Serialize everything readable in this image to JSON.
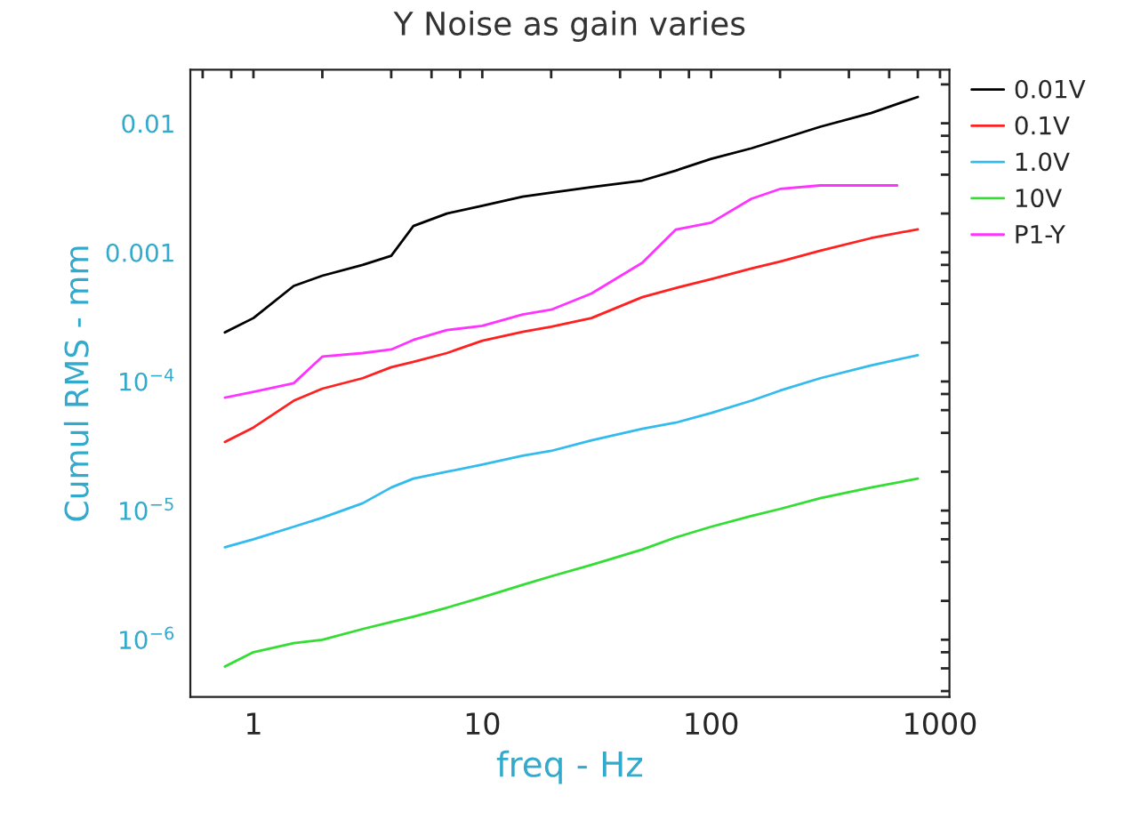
{
  "chart_data": {
    "type": "line",
    "title": "Y Noise as gain varies",
    "xlabel": "freq - Hz",
    "ylabel": "Cumul RMS - mm",
    "log": "xy",
    "grid": false,
    "legend": "right",
    "line_style": "solid",
    "marker": "none",
    "x": [
      0.75,
      1,
      1.5,
      2,
      3,
      4,
      5,
      7,
      10,
      15,
      20,
      30,
      50,
      70,
      100,
      150,
      200,
      300,
      500,
      800
    ],
    "series": [
      {
        "name": "0.01V",
        "color": "#000000",
        "values": [
          0.00024,
          0.00031,
          0.00055,
          0.00066,
          0.0008,
          0.00094,
          0.0016,
          0.002,
          0.0023,
          0.0027,
          0.0029,
          0.0032,
          0.0036,
          0.0043,
          0.0053,
          0.0064,
          0.0075,
          0.0094,
          0.012,
          0.016
        ]
      },
      {
        "name": "0.1V",
        "color": "#ff2020",
        "values": [
          3.4e-05,
          4.4e-05,
          7.1e-05,
          8.8e-05,
          0.000106,
          0.000129,
          0.000142,
          0.000166,
          0.000207,
          0.000242,
          0.000266,
          0.00031,
          0.00045,
          0.00053,
          0.00062,
          0.00075,
          0.00085,
          0.00103,
          0.00129,
          0.00151
        ]
      },
      {
        "name": "1.0V",
        "color": "#33bbee",
        "values": [
          5.2e-06,
          6e-06,
          7.5e-06,
          8.8e-06,
          1.14e-05,
          1.51e-05,
          1.77e-05,
          2e-05,
          2.27e-05,
          2.66e-05,
          2.9e-05,
          3.5e-05,
          4.3e-05,
          4.8e-05,
          5.7e-05,
          7.1e-05,
          8.5e-05,
          0.000106,
          0.000133,
          0.00016
        ]
      },
      {
        "name": "10V",
        "color": "#33dd33",
        "values": [
          6.2e-07,
          8e-07,
          9.4e-07,
          1e-06,
          1.21e-06,
          1.37e-06,
          1.51e-06,
          1.77e-06,
          2.13e-06,
          2.66e-06,
          3.1e-06,
          3.8e-06,
          5e-06,
          6.2e-06,
          7.5e-06,
          9.1e-06,
          1.03e-05,
          1.25e-05,
          1.51e-05,
          1.77e-05
        ]
      },
      {
        "name": "P1-Y",
        "color": "#ff33ff",
        "x": [
          0.75,
          1,
          1.5,
          2,
          3,
          4,
          5,
          7,
          10,
          15,
          20,
          30,
          50,
          70,
          100,
          150,
          200,
          300,
          500,
          650
        ],
        "values": [
          7.5e-05,
          8.3e-05,
          9.7e-05,
          0.000156,
          0.000166,
          0.000177,
          0.00021,
          0.00025,
          0.00027,
          0.00033,
          0.00036,
          0.00048,
          0.00083,
          0.0015,
          0.0017,
          0.0026,
          0.0031,
          0.0033,
          0.0033,
          0.0033
        ]
      }
    ],
    "xlim": [
      0.53,
      1100
    ],
    "xticks": [
      {
        "value": 0.6,
        "label": null
      },
      {
        "value": 0.8,
        "label": null
      },
      1,
      {
        "value": 2,
        "label": null
      },
      {
        "value": 4,
        "label": null
      },
      {
        "value": 6,
        "label": null
      },
      {
        "value": 8,
        "label": null
      },
      10,
      {
        "value": 20,
        "label": null
      },
      {
        "value": 40,
        "label": null
      },
      {
        "value": 60,
        "label": null
      },
      {
        "value": 80,
        "label": null
      },
      100,
      {
        "value": 200,
        "label": null
      },
      {
        "value": 400,
        "label": null
      },
      {
        "value": 600,
        "label": null
      },
      {
        "value": 800,
        "label": null
      },
      1000
    ],
    "ylim": [
      3.6e-07,
      0.026
    ],
    "yticks": [
      {
        "value": 4e-07,
        "label": null
      },
      {
        "value": 6e-07,
        "label": null
      },
      {
        "value": 8e-07,
        "label": null
      },
      {
        "value": 1e-06,
        "label": "10$^{−6}$"
      },
      {
        "value": 2e-06,
        "label": null
      },
      {
        "value": 4e-06,
        "label": null
      },
      {
        "value": 6e-06,
        "label": null
      },
      {
        "value": 8e-06,
        "label": null
      },
      {
        "value": 1e-05,
        "label": "10$^{−5}$"
      },
      {
        "value": 2e-05,
        "label": null
      },
      {
        "value": 4e-05,
        "label": null
      },
      {
        "value": 6e-05,
        "label": null
      },
      {
        "value": 8e-05,
        "label": null
      },
      {
        "value": 0.0001,
        "label": "10$^{−4}$"
      },
      {
        "value": 0.0002,
        "label": null
      },
      {
        "value": 0.0004,
        "label": null
      },
      {
        "value": 0.0006,
        "label": null
      },
      {
        "value": 0.0008,
        "label": null
      },
      0.001,
      {
        "value": 0.002,
        "label": null
      },
      {
        "value": 0.004,
        "label": null
      },
      {
        "value": 0.006,
        "label": null
      },
      {
        "value": 0.008,
        "label": null
      },
      0.01,
      {
        "value": 0.02,
        "label": null
      }
    ]
  }
}
